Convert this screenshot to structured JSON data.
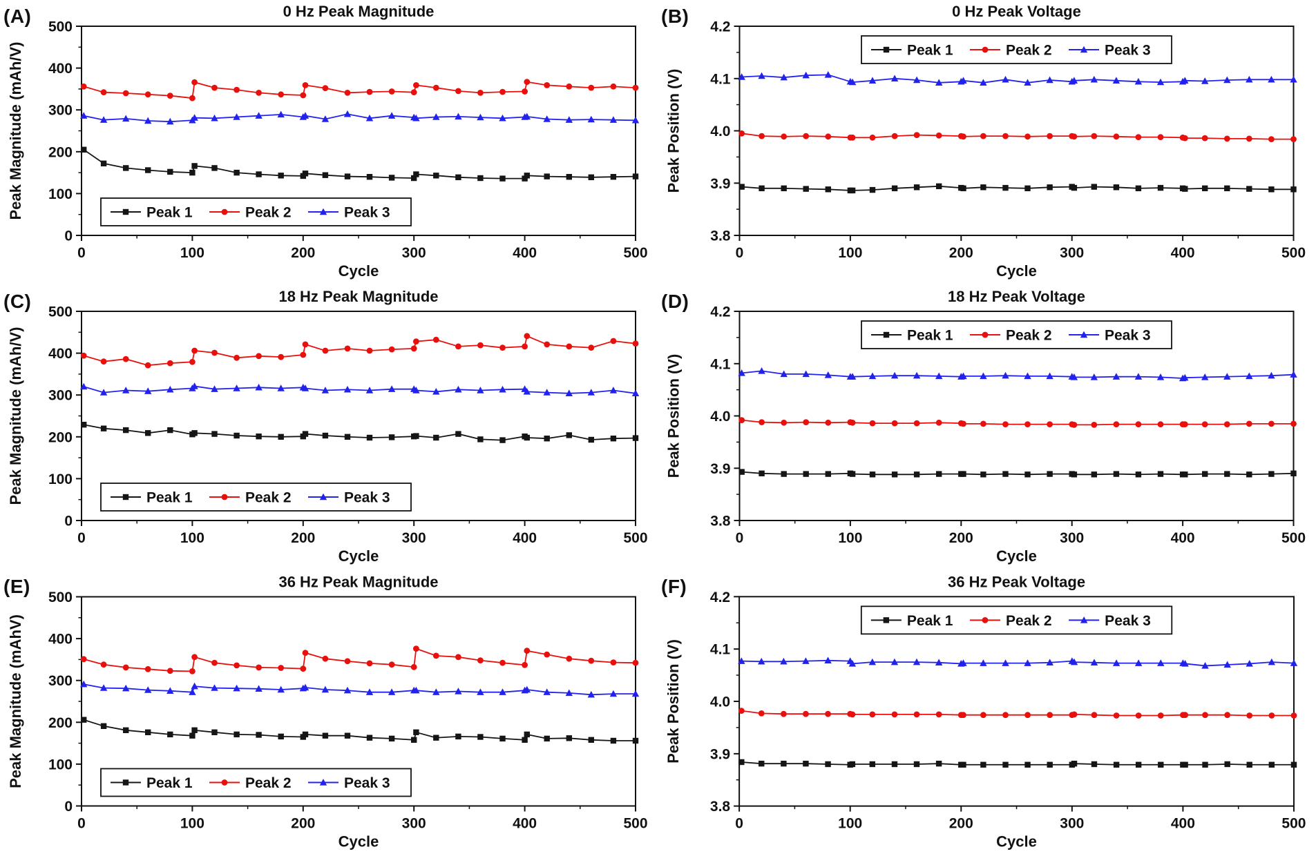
{
  "figure": {
    "background": "#ffffff"
  },
  "series_meta": [
    {
      "name": "Peak 1",
      "color": "#151515",
      "marker": "square"
    },
    {
      "name": "Peak 2",
      "color": "#e8100c",
      "marker": "circle"
    },
    {
      "name": "Peak 3",
      "color": "#2222ee",
      "marker": "triangle"
    }
  ],
  "chart_data": [
    {
      "id": "A",
      "type": "line",
      "panel_label": "(A)",
      "title": "0 Hz Peak Magnitude",
      "xlabel": "Cycle",
      "ylabel": "Peak Magnitude (mAh/V)",
      "xlim": [
        0,
        500
      ],
      "ylim": [
        0,
        500
      ],
      "xticks": [
        0,
        100,
        200,
        300,
        400,
        500
      ],
      "yticks": [
        0,
        100,
        200,
        300,
        400,
        500
      ],
      "ydecimals": 0,
      "grid": false,
      "legend_position": "bottom-left",
      "x": [
        2,
        20,
        40,
        60,
        80,
        100,
        102,
        120,
        140,
        160,
        180,
        200,
        202,
        220,
        240,
        260,
        280,
        300,
        302,
        320,
        340,
        360,
        380,
        400,
        402,
        420,
        440,
        460,
        480,
        500
      ],
      "series": [
        {
          "name": "Peak 1",
          "values": [
            205,
            172,
            161,
            156,
            152,
            150,
            166,
            161,
            150,
            146,
            143,
            142,
            148,
            144,
            141,
            140,
            138,
            137,
            146,
            143,
            139,
            137,
            136,
            136,
            143,
            141,
            140,
            139,
            140,
            141
          ]
        },
        {
          "name": "Peak 2",
          "values": [
            356,
            342,
            340,
            337,
            334,
            328,
            366,
            353,
            348,
            341,
            337,
            335,
            359,
            352,
            341,
            343,
            344,
            342,
            359,
            353,
            345,
            341,
            343,
            344,
            367,
            359,
            356,
            353,
            356,
            353
          ]
        },
        {
          "name": "Peak 3",
          "values": [
            286,
            276,
            279,
            274,
            272,
            275,
            281,
            280,
            283,
            286,
            289,
            283,
            286,
            278,
            290,
            280,
            286,
            282,
            280,
            283,
            284,
            282,
            280,
            283,
            284,
            278,
            276,
            277,
            276,
            275
          ]
        }
      ]
    },
    {
      "id": "B",
      "type": "line",
      "panel_label": "(B)",
      "title": "0 Hz Peak Voltage",
      "xlabel": "Cycle",
      "ylabel": "Peak Position (V)",
      "xlim": [
        0,
        500
      ],
      "ylim": [
        3.8,
        4.2
      ],
      "xticks": [
        0,
        100,
        200,
        300,
        400,
        500
      ],
      "yticks": [
        3.8,
        3.9,
        4.0,
        4.1,
        4.2
      ],
      "ydecimals": 1,
      "grid": false,
      "legend_position": "top-center",
      "x": [
        2,
        20,
        40,
        60,
        80,
        100,
        102,
        120,
        140,
        160,
        180,
        200,
        202,
        220,
        240,
        260,
        280,
        300,
        302,
        320,
        340,
        360,
        380,
        400,
        402,
        420,
        440,
        460,
        480,
        500
      ],
      "series": [
        {
          "name": "Peak 1",
          "values": [
            3.893,
            3.89,
            3.89,
            3.889,
            3.888,
            3.886,
            3.886,
            3.887,
            3.89,
            3.892,
            3.894,
            3.891,
            3.89,
            3.892,
            3.891,
            3.89,
            3.892,
            3.893,
            3.891,
            3.893,
            3.892,
            3.89,
            3.891,
            3.89,
            3.889,
            3.89,
            3.89,
            3.889,
            3.888,
            3.888
          ]
        },
        {
          "name": "Peak 2",
          "values": [
            3.995,
            3.99,
            3.989,
            3.99,
            3.989,
            3.987,
            3.987,
            3.987,
            3.99,
            3.992,
            3.991,
            3.99,
            3.989,
            3.99,
            3.99,
            3.989,
            3.99,
            3.99,
            3.989,
            3.99,
            3.989,
            3.988,
            3.988,
            3.987,
            3.986,
            3.986,
            3.985,
            3.985,
            3.984,
            3.984
          ]
        },
        {
          "name": "Peak 3",
          "values": [
            4.103,
            4.105,
            4.102,
            4.106,
            4.107,
            4.094,
            4.093,
            4.096,
            4.1,
            4.097,
            4.092,
            4.094,
            4.096,
            4.092,
            4.098,
            4.092,
            4.097,
            4.094,
            4.096,
            4.098,
            4.096,
            4.094,
            4.093,
            4.094,
            4.096,
            4.095,
            4.097,
            4.098,
            4.098,
            4.098
          ]
        }
      ]
    },
    {
      "id": "C",
      "type": "line",
      "panel_label": "(C)",
      "title": "18 Hz Peak Magnitude",
      "xlabel": "Cycle",
      "ylabel": "Peak Magnitude (mAh/V)",
      "xlim": [
        0,
        500
      ],
      "ylim": [
        0,
        500
      ],
      "xticks": [
        0,
        100,
        200,
        300,
        400,
        500
      ],
      "yticks": [
        0,
        100,
        200,
        300,
        400,
        500
      ],
      "ydecimals": 0,
      "grid": false,
      "legend_position": "bottom-left",
      "x": [
        2,
        20,
        40,
        60,
        80,
        100,
        102,
        120,
        140,
        160,
        180,
        200,
        202,
        220,
        240,
        260,
        280,
        300,
        302,
        320,
        340,
        360,
        380,
        400,
        402,
        420,
        440,
        460,
        480,
        500
      ],
      "series": [
        {
          "name": "Peak 1",
          "values": [
            229,
            220,
            216,
            209,
            216,
            206,
            209,
            207,
            203,
            201,
            200,
            201,
            207,
            203,
            200,
            198,
            199,
            201,
            202,
            198,
            207,
            194,
            192,
            201,
            198,
            196,
            204,
            193,
            196,
            197
          ]
        },
        {
          "name": "Peak 2",
          "values": [
            394,
            380,
            386,
            371,
            376,
            379,
            406,
            401,
            389,
            393,
            391,
            396,
            421,
            406,
            411,
            406,
            409,
            411,
            428,
            432,
            416,
            419,
            413,
            416,
            441,
            421,
            416,
            413,
            429,
            423
          ]
        },
        {
          "name": "Peak 3",
          "values": [
            320,
            306,
            311,
            309,
            313,
            316,
            321,
            314,
            316,
            318,
            316,
            318,
            316,
            311,
            313,
            311,
            314,
            314,
            311,
            308,
            313,
            311,
            313,
            314,
            308,
            306,
            304,
            306,
            311,
            304
          ]
        }
      ]
    },
    {
      "id": "D",
      "type": "line",
      "panel_label": "(D)",
      "title": "18 Hz Peak Voltage",
      "xlabel": "Cycle",
      "ylabel": "Peak Position (V)",
      "xlim": [
        0,
        500
      ],
      "ylim": [
        3.8,
        4.2
      ],
      "xticks": [
        0,
        100,
        200,
        300,
        400,
        500
      ],
      "yticks": [
        3.8,
        3.9,
        4.0,
        4.1,
        4.2
      ],
      "ydecimals": 1,
      "grid": false,
      "legend_position": "top-center",
      "x": [
        2,
        20,
        40,
        60,
        80,
        100,
        102,
        120,
        140,
        160,
        180,
        200,
        202,
        220,
        240,
        260,
        280,
        300,
        302,
        320,
        340,
        360,
        380,
        400,
        402,
        420,
        440,
        460,
        480,
        500
      ],
      "series": [
        {
          "name": "Peak 1",
          "values": [
            3.893,
            3.89,
            3.889,
            3.889,
            3.889,
            3.89,
            3.889,
            3.888,
            3.888,
            3.888,
            3.889,
            3.889,
            3.889,
            3.888,
            3.889,
            3.888,
            3.889,
            3.889,
            3.888,
            3.888,
            3.889,
            3.888,
            3.889,
            3.888,
            3.888,
            3.889,
            3.889,
            3.888,
            3.889,
            3.89
          ]
        },
        {
          "name": "Peak 2",
          "values": [
            3.992,
            3.988,
            3.987,
            3.988,
            3.987,
            3.988,
            3.987,
            3.986,
            3.986,
            3.986,
            3.987,
            3.986,
            3.985,
            3.985,
            3.984,
            3.984,
            3.984,
            3.984,
            3.983,
            3.983,
            3.984,
            3.984,
            3.984,
            3.984,
            3.984,
            3.984,
            3.984,
            3.985,
            3.985,
            3.985
          ]
        },
        {
          "name": "Peak 3",
          "values": [
            4.082,
            4.086,
            4.08,
            4.08,
            4.078,
            4.075,
            4.075,
            4.076,
            4.077,
            4.077,
            4.076,
            4.075,
            4.076,
            4.076,
            4.077,
            4.076,
            4.076,
            4.075,
            4.074,
            4.074,
            4.075,
            4.075,
            4.074,
            4.072,
            4.073,
            4.074,
            4.075,
            4.076,
            4.077,
            4.079
          ]
        }
      ]
    },
    {
      "id": "E",
      "type": "line",
      "panel_label": "(E)",
      "title": "36 Hz Peak Magnitude",
      "xlabel": "Cycle",
      "ylabel": "Peak Magnitude (mAhV)",
      "xlim": [
        0,
        500
      ],
      "ylim": [
        0,
        500
      ],
      "xticks": [
        0,
        100,
        200,
        300,
        400,
        500
      ],
      "yticks": [
        0,
        100,
        200,
        300,
        400,
        500
      ],
      "ydecimals": 0,
      "grid": false,
      "legend_position": "bottom-left",
      "x": [
        2,
        20,
        40,
        60,
        80,
        100,
        102,
        120,
        140,
        160,
        180,
        200,
        202,
        220,
        240,
        260,
        280,
        300,
        302,
        320,
        340,
        360,
        380,
        400,
        402,
        420,
        440,
        460,
        480,
        500
      ],
      "series": [
        {
          "name": "Peak 1",
          "values": [
            206,
            191,
            181,
            176,
            171,
            168,
            181,
            176,
            171,
            170,
            166,
            165,
            171,
            168,
            168,
            163,
            161,
            158,
            176,
            163,
            166,
            165,
            161,
            158,
            171,
            161,
            162,
            158,
            156,
            156
          ]
        },
        {
          "name": "Peak 2",
          "values": [
            351,
            338,
            331,
            327,
            323,
            322,
            356,
            342,
            336,
            331,
            330,
            328,
            366,
            352,
            346,
            341,
            338,
            332,
            376,
            359,
            356,
            348,
            342,
            337,
            371,
            362,
            352,
            347,
            343,
            342
          ]
        },
        {
          "name": "Peak 3",
          "values": [
            291,
            282,
            281,
            277,
            275,
            272,
            286,
            282,
            281,
            280,
            278,
            281,
            283,
            278,
            276,
            272,
            272,
            276,
            276,
            272,
            274,
            272,
            272,
            276,
            278,
            272,
            270,
            266,
            268,
            268
          ]
        }
      ]
    },
    {
      "id": "F",
      "type": "line",
      "panel_label": "(F)",
      "title": "36 Hz Peak Voltage",
      "xlabel": "Cycle",
      "ylabel": "Peak Position (V)",
      "xlim": [
        0,
        500
      ],
      "ylim": [
        3.8,
        4.2
      ],
      "xticks": [
        0,
        100,
        200,
        300,
        400,
        500
      ],
      "yticks": [
        3.8,
        3.9,
        4.0,
        4.1,
        4.2
      ],
      "ydecimals": 1,
      "grid": false,
      "legend_position": "top-center",
      "x": [
        2,
        20,
        40,
        60,
        80,
        100,
        102,
        120,
        140,
        160,
        180,
        200,
        202,
        220,
        240,
        260,
        280,
        300,
        302,
        320,
        340,
        360,
        380,
        400,
        402,
        420,
        440,
        460,
        480,
        500
      ],
      "series": [
        {
          "name": "Peak 1",
          "values": [
            3.884,
            3.881,
            3.881,
            3.881,
            3.88,
            3.879,
            3.88,
            3.88,
            3.88,
            3.88,
            3.881,
            3.879,
            3.879,
            3.879,
            3.879,
            3.879,
            3.879,
            3.879,
            3.881,
            3.88,
            3.879,
            3.879,
            3.879,
            3.879,
            3.879,
            3.879,
            3.88,
            3.879,
            3.879,
            3.879
          ]
        },
        {
          "name": "Peak 2",
          "values": [
            3.982,
            3.977,
            3.976,
            3.976,
            3.976,
            3.976,
            3.975,
            3.975,
            3.975,
            3.975,
            3.975,
            3.974,
            3.974,
            3.974,
            3.974,
            3.974,
            3.974,
            3.974,
            3.975,
            3.974,
            3.973,
            3.973,
            3.973,
            3.974,
            3.974,
            3.974,
            3.974,
            3.973,
            3.973,
            3.973
          ]
        },
        {
          "name": "Peak 3",
          "values": [
            4.077,
            4.076,
            4.076,
            4.077,
            4.078,
            4.077,
            4.072,
            4.075,
            4.075,
            4.075,
            4.074,
            4.072,
            4.073,
            4.073,
            4.073,
            4.073,
            4.074,
            4.077,
            4.075,
            4.074,
            4.073,
            4.073,
            4.073,
            4.073,
            4.072,
            4.068,
            4.07,
            4.072,
            4.075,
            4.073
          ]
        }
      ]
    }
  ]
}
